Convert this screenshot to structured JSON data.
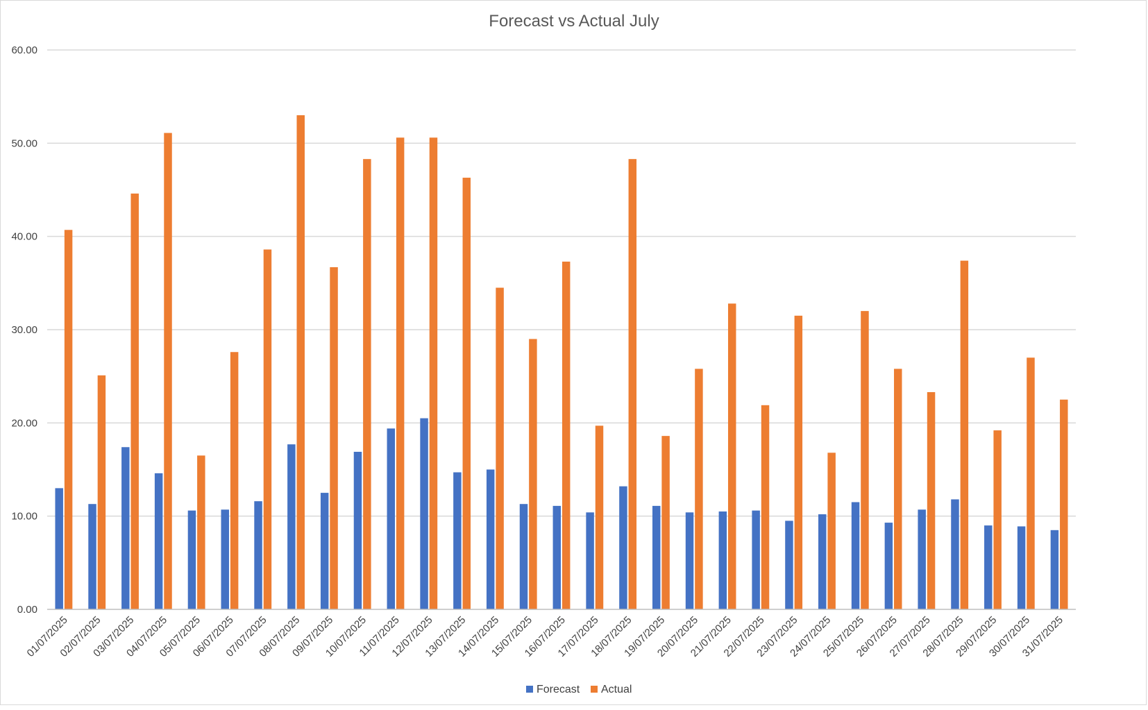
{
  "colors": {
    "forecast": "#4472C4",
    "actual": "#ED7D31",
    "grid": "#d9d9d9",
    "axis": "#bfbfbf",
    "text": "#404040",
    "title": "#595959"
  },
  "chart_data": {
    "type": "bar",
    "title": "Forecast vs Actual July",
    "xlabel": "",
    "ylabel": "",
    "ylim": [
      0,
      60
    ],
    "yticks": [
      0,
      10,
      20,
      30,
      40,
      50,
      60
    ],
    "ytick_labels": [
      "0.00",
      "10.00",
      "20.00",
      "30.00",
      "40.00",
      "50.00",
      "60.00"
    ],
    "grid": true,
    "legend_position": "bottom",
    "categories": [
      "01/07/2025",
      "02/07/2025",
      "03/07/2025",
      "04/07/2025",
      "05/07/2025",
      "06/07/2025",
      "07/07/2025",
      "08/07/2025",
      "09/07/2025",
      "10/07/2025",
      "11/07/2025",
      "12/07/2025",
      "13/07/2025",
      "14/07/2025",
      "15/07/2025",
      "16/07/2025",
      "17/07/2025",
      "18/07/2025",
      "19/07/2025",
      "20/07/2025",
      "21/07/2025",
      "22/07/2025",
      "23/07/2025",
      "24/07/2025",
      "25/07/2025",
      "26/07/2025",
      "27/07/2025",
      "28/07/2025",
      "29/07/2025",
      "30/07/2025",
      "31/07/2025"
    ],
    "series": [
      {
        "name": "Forecast",
        "color": "#4472C4",
        "values": [
          13.0,
          11.3,
          17.4,
          14.6,
          10.6,
          10.7,
          11.6,
          17.7,
          12.5,
          16.9,
          19.4,
          20.5,
          14.7,
          15.0,
          11.3,
          11.1,
          10.4,
          13.2,
          11.1,
          10.4,
          10.5,
          10.6,
          9.5,
          10.2,
          11.5,
          9.3,
          10.7,
          11.8,
          9.0,
          8.9,
          8.5
        ]
      },
      {
        "name": "Actual",
        "color": "#ED7D31",
        "values": [
          40.7,
          25.1,
          44.6,
          51.1,
          16.5,
          27.6,
          38.6,
          53.0,
          36.7,
          48.3,
          50.6,
          50.6,
          46.3,
          34.5,
          29.0,
          37.3,
          19.7,
          48.3,
          18.6,
          25.8,
          32.8,
          21.9,
          31.5,
          16.8,
          32.0,
          25.8,
          23.3,
          37.4,
          19.2,
          27.0,
          22.5
        ]
      }
    ]
  }
}
